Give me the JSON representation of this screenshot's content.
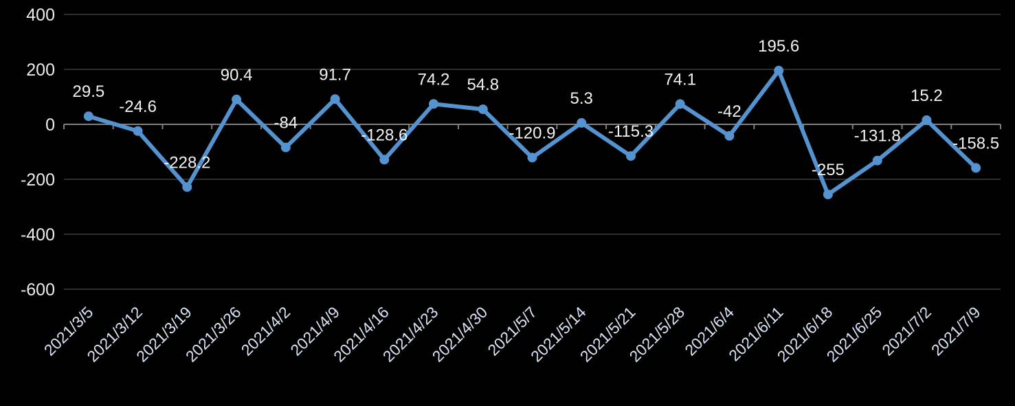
{
  "chart_data": {
    "type": "line",
    "title": "",
    "xlabel": "",
    "ylabel": "",
    "categories": [
      "2021/3/5",
      "2021/3/12",
      "2021/3/19",
      "2021/3/26",
      "2021/4/2",
      "2021/4/9",
      "2021/4/16",
      "2021/4/23",
      "2021/4/30",
      "2021/5/7",
      "2021/5/14",
      "2021/5/21",
      "2021/5/28",
      "2021/6/4",
      "2021/6/11",
      "2021/6/18",
      "2021/6/25",
      "2021/7/2",
      "2021/7/9"
    ],
    "values": [
      29.5,
      -24.6,
      -228.2,
      90.4,
      -84,
      91.7,
      -128.6,
      74.2,
      54.8,
      -120.9,
      5.3,
      -115.3,
      74.1,
      -42,
      195.6,
      -255,
      -131.8,
      15.2,
      -158.5
    ],
    "point_labels": [
      "29.5",
      "-24.6",
      "-228.2",
      "90.4",
      "-84",
      "91.7",
      "-128.6",
      "74.2",
      "54.8",
      "-120.9",
      "5.3",
      "-115.3",
      "74.1",
      "-42",
      "195.6",
      "-255",
      "-131.8",
      "15.2",
      "-158.5"
    ],
    "yticks": [
      400,
      200,
      0,
      -200,
      -400,
      -600
    ],
    "ytick_labels": [
      "400",
      "200",
      "0",
      "-200",
      "-400",
      "-600"
    ],
    "ylim": [
      -600,
      400
    ],
    "grid": true,
    "legend": "none",
    "colors": {
      "background": "#000000",
      "series_line": "#5493d0",
      "marker_fill": "#5493d0",
      "gridline": "#2e2e2e",
      "axis_line": "#808080",
      "data_label": "#f2f2f2",
      "ytick_label": "#ececec",
      "xtick_label": "#d7e3f4"
    }
  }
}
